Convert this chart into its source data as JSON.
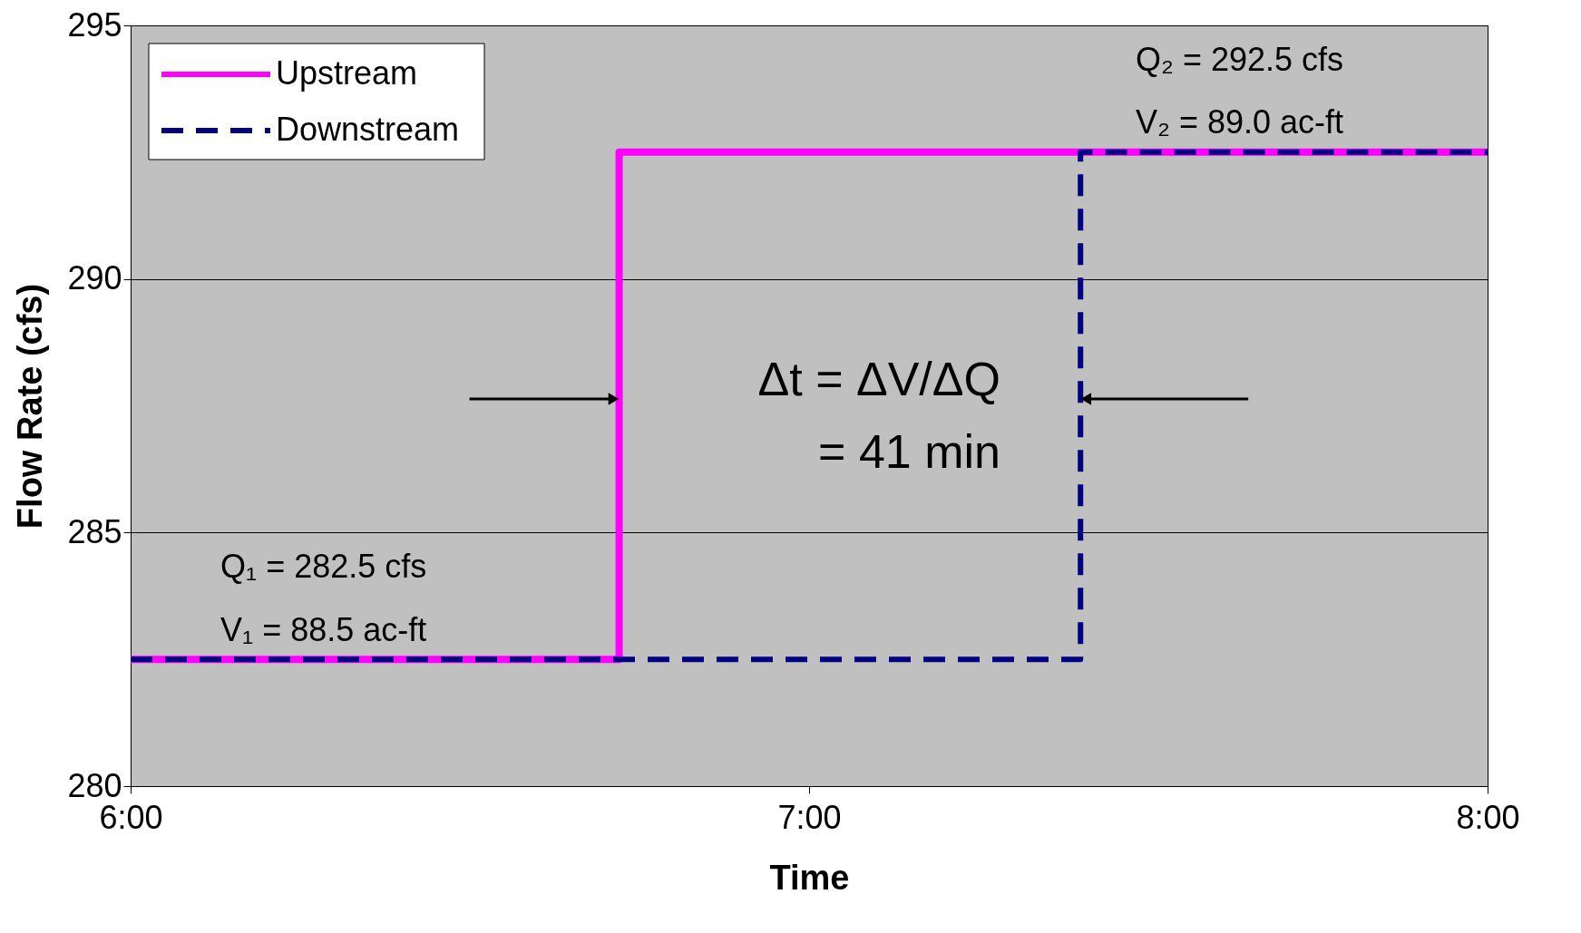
{
  "chart_data": {
    "type": "step",
    "xlabel": "Time",
    "ylabel": "Flow Rate (cfs)",
    "series": [
      {
        "name": "Upstream",
        "color": "#ff00ff",
        "line_style": "solid",
        "x": [
          6,
          6.72,
          8
        ],
        "values": [
          282.5,
          292.5,
          292.5
        ]
      },
      {
        "name": "Downstream",
        "color": "#000080",
        "line_style": "dashed",
        "x": [
          6,
          7.4,
          8
        ],
        "values": [
          282.5,
          292.5,
          292.5
        ]
      }
    ],
    "xlim": [
      6,
      8
    ],
    "xticks": [
      {
        "value": 6,
        "label": "6:00"
      },
      {
        "value": 7,
        "label": "7:00"
      },
      {
        "value": 8,
        "label": "8:00"
      }
    ],
    "ylim": [
      280,
      295
    ],
    "yticks": [
      280,
      285,
      290,
      295
    ],
    "grid": "y",
    "legend": "top left",
    "annotations": [
      "Q₂  = 292.5 cfs",
      "V₂ = 89.0 ac-ft",
      "Q₁  = 282.5 cfs",
      "V₁ = 88.5 ac-ft",
      "Δt = ΔV/ΔQ",
      "= 41 min"
    ]
  }
}
